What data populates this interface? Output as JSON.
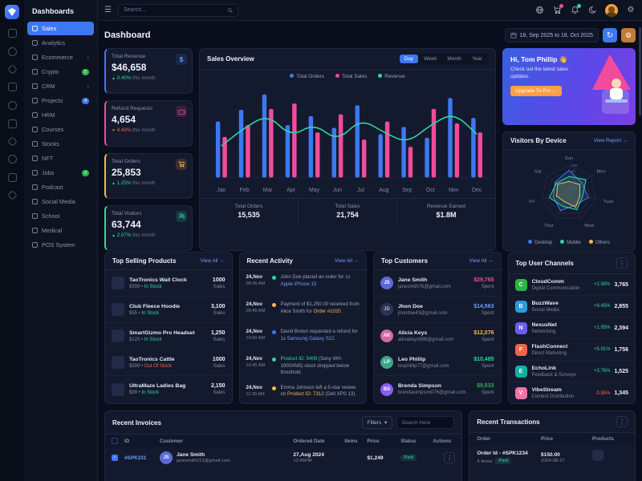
{
  "icons": {
    "hamburger": "☰",
    "gear": "⚙",
    "kebab": "⋮",
    "chevron_down": "▾",
    "chevron_right": "›",
    "up": "▲",
    "down": "▼",
    "check": "✓",
    "dollar": "$",
    "refresh": "↻"
  },
  "topbar": {
    "search_placeholder": "Search..."
  },
  "sidebar": {
    "title": "Dashboards",
    "items": [
      {
        "label": "Sales"
      },
      {
        "label": "Analytics"
      },
      {
        "label": "Ecommerce"
      },
      {
        "label": "Crypto",
        "badge": "5"
      },
      {
        "label": "CRM"
      },
      {
        "label": "Projects",
        "badge": "4"
      },
      {
        "label": "HRM"
      },
      {
        "label": "Courses"
      },
      {
        "label": "Stocks"
      },
      {
        "label": "NFT"
      },
      {
        "label": "Jobs",
        "badge": "2"
      },
      {
        "label": "Podcast"
      },
      {
        "label": "Social Media"
      },
      {
        "label": "School"
      },
      {
        "label": "Medical"
      },
      {
        "label": "POS System"
      }
    ]
  },
  "page": {
    "title": "Dashboard",
    "date_range": "18, Sep 2025 to 18, Oct 2025"
  },
  "stats": {
    "items": [
      {
        "label": "Total Revenue",
        "value": "$46,658",
        "delta": "0.40%",
        "note": "this month"
      },
      {
        "label": "Refund Requests",
        "value": "4,654",
        "delta": "4.43%",
        "note": "this month"
      },
      {
        "label": "Total Orders",
        "value": "25,853",
        "delta": "1.25%",
        "note": "this month"
      },
      {
        "label": "Total Visitors",
        "value": "63,744",
        "delta": "2.07%",
        "note": "this month"
      }
    ]
  },
  "sales_overview": {
    "title": "Sales Overview",
    "tabs": [
      "Day",
      "Week",
      "Month",
      "Year"
    ],
    "active_tab": "Day",
    "legend": [
      {
        "label": "Total Orders",
        "color": "#3d78f2"
      },
      {
        "label": "Total Sales",
        "color": "#f24b9b"
      },
      {
        "label": "Revenue",
        "color": "#2fd7a2"
      }
    ],
    "chart": {
      "type": "bar+line",
      "ymax": 100,
      "categories": [
        "Jan",
        "Feb",
        "Mar",
        "Apr",
        "May",
        "Jun",
        "Jul",
        "Aug",
        "Sep",
        "Oct",
        "Nov",
        "Dec"
      ],
      "series": [
        {
          "name": "Total Orders",
          "type": "bar",
          "color": "#3d78f2",
          "values": [
            62,
            75,
            92,
            58,
            68,
            55,
            80,
            48,
            56,
            44,
            88,
            66
          ]
        },
        {
          "name": "Total Sales",
          "type": "bar",
          "color": "#f24b9b",
          "values": [
            45,
            58,
            76,
            82,
            50,
            70,
            42,
            62,
            34,
            76,
            60,
            50
          ]
        },
        {
          "name": "Revenue",
          "type": "line",
          "color": "#2fd7a2",
          "values": [
            35,
            55,
            70,
            45,
            60,
            40,
            65,
            50,
            38,
            58,
            72,
            48
          ]
        }
      ]
    },
    "footer": [
      {
        "label": "Total Orders",
        "value": "15,535"
      },
      {
        "label": "Total Sales",
        "value": "21,754"
      },
      {
        "label": "Revenue Earned",
        "value": "$1.8M"
      }
    ]
  },
  "greeting": {
    "title": "Hi, Tom Phillip 👋",
    "subtitle": "Check out the latest sales updates.",
    "cta": "Upgrade To Pro →"
  },
  "visitors": {
    "title": "Visitors By Device",
    "link": "View Report →",
    "chart": {
      "type": "radar",
      "axes": [
        "Sun",
        "Mon",
        "Tues",
        "Wed",
        "Thur",
        "Fri",
        "Sat"
      ],
      "ticks": [
        0,
        20,
        40,
        60,
        80,
        100
      ],
      "series": [
        {
          "name": "Desktop",
          "color": "#3d78f2",
          "values": [
            82,
            60,
            72,
            48,
            70,
            58,
            64
          ]
        },
        {
          "name": "Mobile",
          "color": "#2fd7a2",
          "values": [
            60,
            78,
            50,
            66,
            52,
            72,
            58
          ]
        },
        {
          "name": "Others",
          "color": "#f7b84b",
          "values": [
            42,
            50,
            40,
            56,
            34,
            46,
            52
          ]
        }
      ]
    }
  },
  "products": {
    "title": "Top Selling Products",
    "link": "View All →",
    "items": [
      {
        "name": "TaoTronics Wall Clock",
        "price": "$599",
        "stock": "In Stock",
        "sales": "1000",
        "unit": "Sales"
      },
      {
        "name": "Club Fleece Hoodie",
        "price": "$55",
        "stock": "In Stock",
        "sales": "3,100",
        "unit": "Sales"
      },
      {
        "name": "SmartGizmo Pro Headset",
        "price": "$120",
        "stock": "In Stock",
        "sales": "1,250",
        "unit": "Sales"
      },
      {
        "name": "TaoTronics Cattle",
        "price": "$599",
        "stock": "Out Of Stock",
        "sales": "1000",
        "unit": "Sales"
      },
      {
        "name": "UltraMaze Ladies Bag",
        "price": "$99",
        "stock": "In Stock",
        "sales": "2,150",
        "unit": "Sales"
      }
    ]
  },
  "activity": {
    "title": "Recent Activity",
    "link": "View All →",
    "items": [
      {
        "date": "24,Nov",
        "time": "08:45 AM",
        "pre": "John Doe placed an order for ",
        "link": "1x Apple iPhone 15",
        "post": ""
      },
      {
        "date": "24,Nov",
        "time": "09:46 AM",
        "pre": "Payment of $1,250.00 received from Alice Smith for ",
        "link": "Order #1020.",
        "post": ""
      },
      {
        "date": "24,Nov",
        "time": "10:00 AM",
        "pre": "David Brown requested a refund for ",
        "link": "1x Samsung Galaxy S22.",
        "post": ""
      },
      {
        "date": "24,Nov",
        "time": "10:45 AM",
        "pre": "",
        "link": "Product ID: 5409",
        "post": " (Sony WH-1000XM5) stock dropped below threshold."
      },
      {
        "date": "24,Nov",
        "time": "11:30 AM",
        "pre": "Emma Johnson left a 5-star review on ",
        "link": "Product ID: 7312",
        "post": " (Dell XPS 13)."
      }
    ]
  },
  "customers": {
    "title": "Top Customers",
    "link": "View All →",
    "spent_label": "Spent",
    "items": [
      {
        "name": "Jane Smith",
        "email": "janesmith76@gmail.com",
        "initials": "JS",
        "amount": "$29,765"
      },
      {
        "name": "Jhon Doe",
        "email": "jhondoe43@gmail.com",
        "initials": "JD",
        "amount": "$14,563"
      },
      {
        "name": "Alicia Keys",
        "email": "aliciakeys986@gmail.com",
        "initials": "AK",
        "amount": "$12,076"
      },
      {
        "name": "Leo Phillip",
        "email": "leophillip77@gmail.com",
        "initials": "LP",
        "amount": "$10,485"
      },
      {
        "name": "Brenda Simpson",
        "email": "brendasimpson076@gmail.com",
        "initials": "BS",
        "amount": "$9,533"
      }
    ]
  },
  "channels": {
    "title": "Top User Channels",
    "items": [
      {
        "name": "CloudComm",
        "category": "Digital Communication",
        "initial": "C",
        "delta": "+2.98%",
        "value": "3,765"
      },
      {
        "name": "BuzzWave",
        "category": "Social Media",
        "initial": "B",
        "delta": "+8.45%",
        "value": "2,855"
      },
      {
        "name": "NexusNet",
        "category": "Networking",
        "initial": "N",
        "delta": "+1.95%",
        "value": "2,394"
      },
      {
        "name": "FlashConnect",
        "category": "Direct Marketing",
        "initial": "F",
        "delta": "+5.91%",
        "value": "1,756"
      },
      {
        "name": "EchoLink",
        "category": "Feedback & Surveys",
        "initial": "E",
        "delta": "+3.76%",
        "value": "1,525"
      },
      {
        "name": "VibeStream",
        "category": "Content Distribution",
        "initial": "V",
        "delta": "-0.85%",
        "value": "1,345"
      }
    ]
  },
  "invoices": {
    "title": "Recent Invoices",
    "filters_label": "Filters",
    "search_placeholder": "Search Here",
    "columns": [
      "ID",
      "Customer",
      "Ordered Date",
      "Items",
      "Price",
      "Status",
      "Actions"
    ],
    "rows": [
      {
        "id": "#SPK231",
        "customer": "Jane Smith",
        "email": "janesmith213@gmail.com",
        "initials": "JS",
        "date": "27,Aug 2024",
        "time": "12:45PM",
        "items": "",
        "price": "$1,249",
        "status": "Paid"
      }
    ]
  },
  "transactions": {
    "title": "Recent Transactions",
    "columns": [
      "Order",
      "Price",
      "Products"
    ],
    "rows": [
      {
        "order_id": "Order Id - #SPK1234",
        "items": "4 Items",
        "status": "Paid",
        "price": "$150.00",
        "date": "2024-08-27"
      }
    ]
  },
  "theme": {
    "accent": "#3d78f2",
    "pink": "#f24b9b",
    "green": "#2fd7a2",
    "amber": "#f7b84b",
    "red": "#f06548"
  }
}
